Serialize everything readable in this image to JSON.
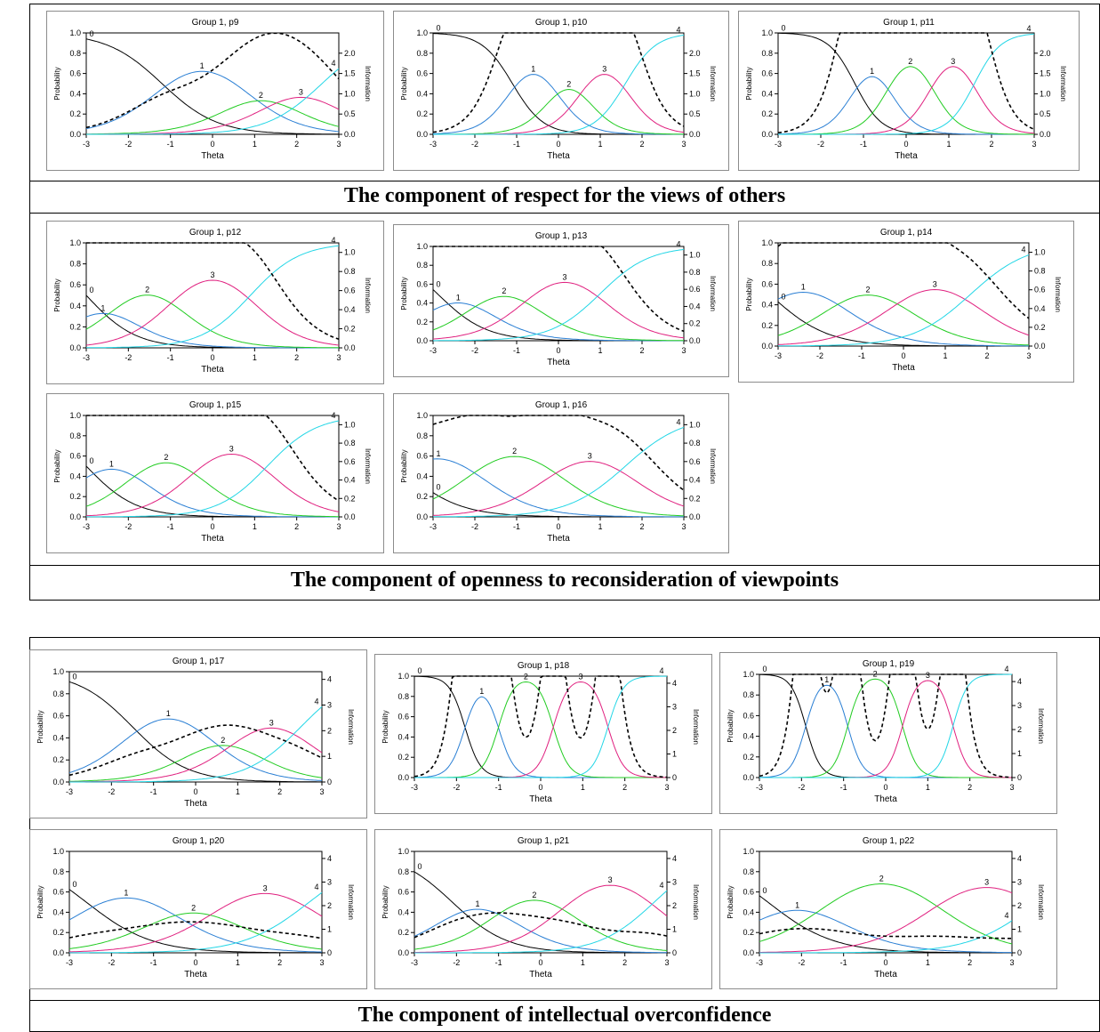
{
  "sections": [
    {
      "caption": "The component of respect for the views of others"
    },
    {
      "caption": "The component of openness to reconsideration of viewpoints"
    },
    {
      "caption": "The component of intellectual overconfidence"
    }
  ],
  "colors": {
    "cat0": "#000000",
    "cat1": "#2a7fd4",
    "cat2": "#22cc22",
    "cat3": "#e0207f",
    "cat4": "#22d6e6",
    "info": "#000000"
  },
  "chart_data": [
    {
      "type": "line",
      "title": "Group 1, p9",
      "xlabel": "Theta",
      "ylabel": "Probability",
      "y2label": "Information",
      "xlim": [
        -3,
        3
      ],
      "ylim": [
        0,
        1
      ],
      "y2lim": [
        0,
        2.5
      ],
      "x_ticks": [
        "-3",
        "-2",
        "-1",
        "0",
        "1",
        "2",
        "3"
      ],
      "y_ticks": [
        "0.0",
        "0.2",
        "0.4",
        "0.6",
        "0.8",
        "1.0"
      ],
      "y2_ticks": [
        "0.0",
        "0.5",
        "1.0",
        "1.5",
        "2.0"
      ],
      "categories": [
        "0",
        "1",
        "2",
        "3",
        "4"
      ],
      "a": 0.9,
      "b": [
        -1.2,
        0.7,
        1.6,
        2.6
      ]
    },
    {
      "type": "line",
      "title": "Group 1, p10",
      "xlabel": "Theta",
      "ylabel": "Probability",
      "y2label": "Information",
      "xlim": [
        -3,
        3
      ],
      "ylim": [
        0,
        1
      ],
      "y2lim": [
        0,
        2.5
      ],
      "x_ticks": [
        "-3",
        "-2",
        "-1",
        "0",
        "1",
        "2",
        "3"
      ],
      "y_ticks": [
        "0.0",
        "0.2",
        "0.4",
        "0.6",
        "0.8",
        "1.0"
      ],
      "y2_ticks": [
        "0.0",
        "0.5",
        "1.0",
        "1.5",
        "2.0"
      ],
      "categories": [
        "0",
        "1",
        "2",
        "3",
        "4"
      ],
      "a": 1.6,
      "b": [
        -1.1,
        -0.1,
        0.6,
        1.6
      ]
    },
    {
      "type": "line",
      "title": "Group 1, p11",
      "xlabel": "Theta",
      "ylabel": "Probability",
      "y2label": "Information",
      "xlim": [
        -3,
        3
      ],
      "ylim": [
        0,
        1
      ],
      "y2lim": [
        0,
        2.5
      ],
      "x_ticks": [
        "-3",
        "-2",
        "-1",
        "0",
        "1",
        "2",
        "3"
      ],
      "y_ticks": [
        "0.0",
        "0.2",
        "0.4",
        "0.6",
        "0.8",
        "1.0"
      ],
      "y2_ticks": [
        "0.0",
        "0.5",
        "1.0",
        "1.5",
        "2.0"
      ],
      "categories": [
        "0",
        "1",
        "2",
        "3",
        "4"
      ],
      "a": 1.9,
      "b": [
        -1.2,
        -0.4,
        0.6,
        1.6
      ]
    },
    {
      "type": "line",
      "title": "Group 1, p12",
      "xlabel": "Theta",
      "ylabel": "Probability",
      "y2label": "Information",
      "xlim": [
        -3,
        3
      ],
      "ylim": [
        0,
        1
      ],
      "y2lim": [
        0,
        1.1
      ],
      "x_ticks": [
        "-3",
        "-2",
        "-1",
        "0",
        "1",
        "2",
        "3"
      ],
      "y_ticks": [
        "0.0",
        "0.2",
        "0.4",
        "0.6",
        "0.8",
        "1.0"
      ],
      "y2_ticks": [
        "0.0",
        "0.2",
        "0.4",
        "0.6",
        "0.8",
        "1.0"
      ],
      "categories": [
        "0",
        "1",
        "2",
        "3",
        "4"
      ],
      "a": 1.0,
      "b": [
        -3.0,
        -2.2,
        -0.9,
        0.9
      ]
    },
    {
      "type": "line",
      "title": "Group 1, p13",
      "xlabel": "Theta",
      "ylabel": "Probability",
      "y2label": "Information",
      "xlim": [
        -3,
        3
      ],
      "ylim": [
        0,
        1
      ],
      "y2lim": [
        0,
        1.1
      ],
      "x_ticks": [
        "-3",
        "-2",
        "-1",
        "0",
        "1",
        "2",
        "3"
      ],
      "y_ticks": [
        "0.0",
        "0.2",
        "0.4",
        "0.6",
        "0.8",
        "1.0"
      ],
      "y2_ticks": [
        "0.0",
        "0.2",
        "0.4",
        "0.6",
        "0.8",
        "1.0"
      ],
      "categories": [
        "0",
        "1",
        "2",
        "3",
        "4"
      ],
      "a": 1.0,
      "b": [
        -2.9,
        -1.9,
        -0.7,
        1.0
      ]
    },
    {
      "type": "line",
      "title": "Group 1, p14",
      "xlabel": "Theta",
      "ylabel": "Probability",
      "y2label": "Information",
      "xlim": [
        -3,
        3
      ],
      "ylim": [
        0,
        1
      ],
      "y2lim": [
        0,
        1.1
      ],
      "x_ticks": [
        "-3",
        "-2",
        "-1",
        "0",
        "1",
        "2",
        "3"
      ],
      "y_ticks": [
        "0.0",
        "0.2",
        "0.4",
        "0.6",
        "0.8",
        "1.0"
      ],
      "y2_ticks": [
        "0.0",
        "0.2",
        "0.4",
        "0.6",
        "0.8",
        "1.0"
      ],
      "categories": [
        "0",
        "1",
        "2",
        "3",
        "4"
      ],
      "a": 0.85,
      "b": [
        -3.2,
        -1.6,
        -0.1,
        1.6
      ]
    },
    {
      "type": "line",
      "title": "Group 1, p15",
      "xlabel": "Theta",
      "ylabel": "Probability",
      "y2label": "Information",
      "xlim": [
        -3,
        3
      ],
      "ylim": [
        0,
        1
      ],
      "y2lim": [
        0,
        1.1
      ],
      "x_ticks": [
        "-3",
        "-2",
        "-1",
        "0",
        "1",
        "2",
        "3"
      ],
      "y_ticks": [
        "0.0",
        "0.2",
        "0.4",
        "0.6",
        "0.8",
        "1.0"
      ],
      "y2_ticks": [
        "0.0",
        "0.2",
        "0.4",
        "0.6",
        "0.8",
        "1.0"
      ],
      "categories": [
        "0",
        "1",
        "2",
        "3",
        "4"
      ],
      "a": 1.0,
      "b": [
        -3.0,
        -1.8,
        -0.4,
        1.3
      ]
    },
    {
      "type": "line",
      "title": "Group 1, p16",
      "xlabel": "Theta",
      "ylabel": "Probability",
      "y2label": "Information",
      "xlim": [
        -3,
        3
      ],
      "ylim": [
        0,
        1
      ],
      "y2lim": [
        0,
        1.1
      ],
      "x_ticks": [
        "-3",
        "-2",
        "-1",
        "0",
        "1",
        "2",
        "3"
      ],
      "y_ticks": [
        "0.0",
        "0.2",
        "0.4",
        "0.6",
        "0.8",
        "1.0"
      ],
      "y2_ticks": [
        "0.0",
        "0.2",
        "0.4",
        "0.6",
        "0.8",
        "1.0"
      ],
      "categories": [
        "0",
        "1",
        "2",
        "3",
        "4"
      ],
      "a": 0.85,
      "b": [
        -3.8,
        -2.0,
        -0.1,
        1.6
      ]
    },
    {
      "type": "line",
      "title": "Group 1, p17",
      "xlabel": "Theta",
      "ylabel": "Probability",
      "y2label": "Information",
      "xlim": [
        -3,
        3
      ],
      "ylim": [
        0,
        1
      ],
      "y2lim": [
        0,
        4.3
      ],
      "x_ticks": [
        "-3",
        "-2",
        "-1",
        "0",
        "1",
        "2",
        "3"
      ],
      "y_ticks": [
        "0.0",
        "0.2",
        "0.4",
        "0.6",
        "0.8",
        "1.0"
      ],
      "y2_ticks": [
        "0",
        "1",
        "2",
        "3",
        "4"
      ],
      "categories": [
        "0",
        "1",
        "2",
        "3",
        "4"
      ],
      "a": 0.9,
      "b": [
        -1.5,
        0.2,
        1.1,
        2.5
      ]
    },
    {
      "type": "line",
      "title": "Group 1, p18",
      "xlabel": "Theta",
      "ylabel": "Probability",
      "y2label": "Information",
      "xlim": [
        -3,
        3
      ],
      "ylim": [
        0,
        1
      ],
      "y2lim": [
        0,
        4.3
      ],
      "x_ticks": [
        "-3",
        "-2",
        "-1",
        "0",
        "1",
        "2",
        "3"
      ],
      "y_ticks": [
        "0.0",
        "0.2",
        "0.4",
        "0.6",
        "0.8",
        "1.0"
      ],
      "y2_ticks": [
        "0",
        "1",
        "2",
        "3",
        "4"
      ],
      "categories": [
        "0",
        "1",
        "2",
        "3",
        "4"
      ],
      "a": 3.2,
      "b": [
        -1.8,
        -1.0,
        0.3,
        1.6
      ]
    },
    {
      "type": "line",
      "title": "Group 1, p19",
      "xlabel": "Theta",
      "ylabel": "Probability",
      "y2label": "Information",
      "xlim": [
        -3,
        3
      ],
      "ylim": [
        0,
        1
      ],
      "y2lim": [
        0,
        4.3
      ],
      "x_ticks": [
        "-3",
        "-2",
        "-1",
        "0",
        "1",
        "2",
        "3"
      ],
      "y_ticks": [
        "0.0",
        "0.2",
        "0.4",
        "0.6",
        "0.8",
        "1.0"
      ],
      "y2_ticks": [
        "0",
        "1",
        "2",
        "3",
        "4"
      ],
      "categories": [
        "0",
        "1",
        "2",
        "3",
        "4"
      ],
      "a": 3.4,
      "b": [
        -1.9,
        -0.9,
        0.4,
        1.6
      ]
    },
    {
      "type": "line",
      "title": "Group 1, p20",
      "xlabel": "Theta",
      "ylabel": "Probability",
      "y2label": "Information",
      "xlim": [
        -3,
        3
      ],
      "ylim": [
        0,
        1
      ],
      "y2lim": [
        0,
        4.3
      ],
      "x_ticks": [
        "-3",
        "-2",
        "-1",
        "0",
        "1",
        "2",
        "3"
      ],
      "y_ticks": [
        "0.0",
        "0.2",
        "0.4",
        "0.6",
        "0.8",
        "1.0"
      ],
      "y2_ticks": [
        "0",
        "1",
        "2",
        "3",
        "4"
      ],
      "categories": [
        "0",
        "1",
        "2",
        "3",
        "4"
      ],
      "a": 0.75,
      "b": [
        -2.6,
        -0.7,
        0.6,
        2.7
      ]
    },
    {
      "type": "line",
      "title": "Group 1, p21",
      "xlabel": "Theta",
      "ylabel": "Probability",
      "y2label": "Information",
      "xlim": [
        -3,
        3
      ],
      "ylim": [
        0,
        1
      ],
      "y2lim": [
        0,
        4.3
      ],
      "x_ticks": [
        "-3",
        "-2",
        "-1",
        "0",
        "1",
        "2",
        "3"
      ],
      "y_ticks": [
        "0.0",
        "0.2",
        "0.4",
        "0.6",
        "0.8",
        "1.0"
      ],
      "y2_ticks": [
        "0",
        "1",
        "2",
        "3",
        "4"
      ],
      "categories": [
        "0",
        "1",
        "2",
        "3",
        "4"
      ],
      "a": 0.9,
      "b": [
        -2.1,
        -0.9,
        0.6,
        2.7
      ]
    },
    {
      "type": "line",
      "title": "Group 1, p22",
      "xlabel": "Theta",
      "ylabel": "Probability",
      "y2label": "Information",
      "xlim": [
        -3,
        3
      ],
      "ylim": [
        0,
        1
      ],
      "y2lim": [
        0,
        4.3
      ],
      "x_ticks": [
        "-3",
        "-2",
        "-1",
        "0",
        "1",
        "2",
        "3"
      ],
      "y_ticks": [
        "0.0",
        "0.2",
        "0.4",
        "0.6",
        "0.8",
        "1.0"
      ],
      "y2_ticks": [
        "0",
        "1",
        "2",
        "3",
        "4"
      ],
      "categories": [
        "0",
        "1",
        "2",
        "3",
        "4"
      ],
      "a": 0.75,
      "b": [
        -2.8,
        -1.4,
        1.2,
        3.6
      ]
    }
  ]
}
